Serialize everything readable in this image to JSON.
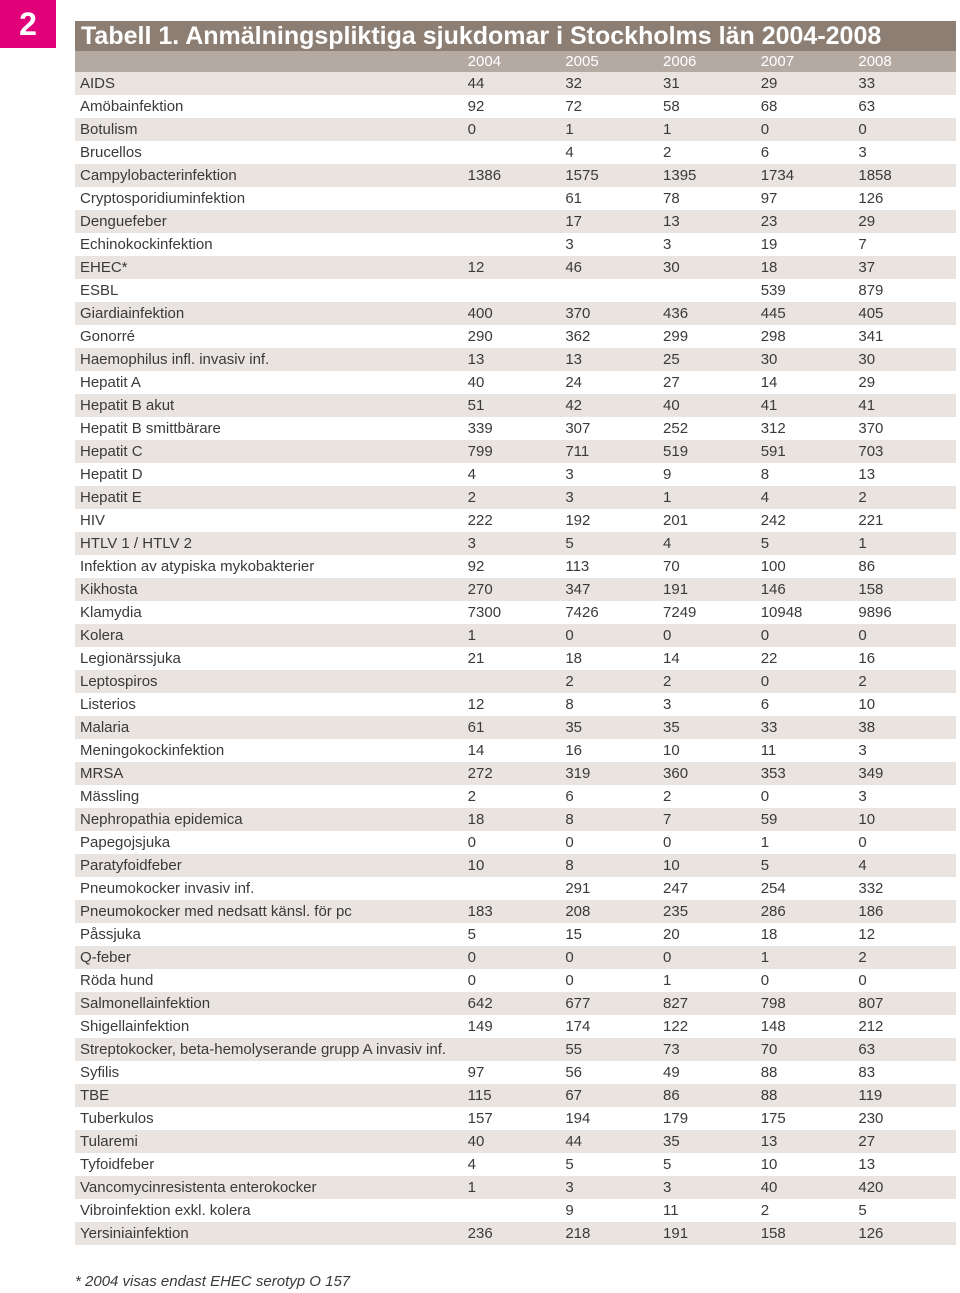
{
  "page_number": "2",
  "title": "Tabell 1. Anmälningspliktiga sjukdomar i Stockholms län 2004-2008",
  "years": [
    "2004",
    "2005",
    "2006",
    "2007",
    "2008"
  ],
  "rows": [
    {
      "name": "AIDS",
      "values": [
        "44",
        "32",
        "31",
        "29",
        "33"
      ]
    },
    {
      "name": "Amöbainfektion",
      "values": [
        "92",
        "72",
        "58",
        "68",
        "63"
      ]
    },
    {
      "name": "Botulism",
      "values": [
        "0",
        "1",
        "1",
        "0",
        "0"
      ]
    },
    {
      "name": "Brucellos",
      "values": [
        "",
        "4",
        "2",
        "6",
        "3"
      ]
    },
    {
      "name": "Campylobacterinfektion",
      "values": [
        "1386",
        "1575",
        "1395",
        "1734",
        "1858"
      ]
    },
    {
      "name": "Cryptosporidiuminfektion",
      "values": [
        "",
        "61",
        "78",
        "97",
        "126"
      ]
    },
    {
      "name": "Denguefeber",
      "values": [
        "",
        "17",
        "13",
        "23",
        "29"
      ]
    },
    {
      "name": "Echinokockinfektion",
      "values": [
        "",
        "3",
        "3",
        "19",
        "7"
      ]
    },
    {
      "name": "EHEC*",
      "values": [
        "12",
        "46",
        "30",
        "18",
        "37"
      ]
    },
    {
      "name": "ESBL",
      "values": [
        "",
        "",
        "",
        "539",
        "879"
      ]
    },
    {
      "name": "Giardiainfektion",
      "values": [
        "400",
        "370",
        "436",
        "445",
        "405"
      ]
    },
    {
      "name": "Gonorré",
      "values": [
        "290",
        "362",
        "299",
        "298",
        "341"
      ]
    },
    {
      "name": "Haemophilus infl. invasiv inf.",
      "values": [
        "13",
        "13",
        "25",
        "30",
        "30"
      ]
    },
    {
      "name": "Hepatit A",
      "values": [
        "40",
        "24",
        "27",
        "14",
        "29"
      ]
    },
    {
      "name": "Hepatit B akut",
      "values": [
        "51",
        "42",
        "40",
        "41",
        "41"
      ]
    },
    {
      "name": "Hepatit B smittbärare",
      "values": [
        "339",
        "307",
        "252",
        "312",
        "370"
      ]
    },
    {
      "name": "Hepatit C",
      "values": [
        "799",
        "711",
        "519",
        "591",
        "703"
      ]
    },
    {
      "name": "Hepatit D",
      "values": [
        "4",
        "3",
        "9",
        "8",
        "13"
      ]
    },
    {
      "name": "Hepatit E",
      "values": [
        "2",
        "3",
        "1",
        "4",
        "2"
      ]
    },
    {
      "name": "HIV",
      "values": [
        "222",
        "192",
        "201",
        "242",
        "221"
      ]
    },
    {
      "name": "HTLV 1 / HTLV 2",
      "values": [
        "3",
        "5",
        "4",
        "5",
        "1"
      ]
    },
    {
      "name": "Infektion av atypiska mykobakterier",
      "values": [
        "92",
        "113",
        "70",
        "100",
        "86"
      ]
    },
    {
      "name": "Kikhosta",
      "values": [
        "270",
        "347",
        "191",
        "146",
        "158"
      ]
    },
    {
      "name": "Klamydia",
      "values": [
        "7300",
        "7426",
        "7249",
        "10948",
        "9896"
      ]
    },
    {
      "name": "Kolera",
      "values": [
        "1",
        "0",
        "0",
        "0",
        "0"
      ]
    },
    {
      "name": "Legionärssjuka",
      "values": [
        "21",
        "18",
        "14",
        "22",
        "16"
      ]
    },
    {
      "name": "Leptospiros",
      "values": [
        "",
        "2",
        "2",
        "0",
        "2"
      ]
    },
    {
      "name": "Listerios",
      "values": [
        "12",
        "8",
        "3",
        "6",
        "10"
      ]
    },
    {
      "name": "Malaria",
      "values": [
        "61",
        "35",
        "35",
        "33",
        "38"
      ]
    },
    {
      "name": "Meningokockinfektion",
      "values": [
        "14",
        "16",
        "10",
        "11",
        "3"
      ]
    },
    {
      "name": "MRSA",
      "values": [
        "272",
        "319",
        "360",
        "353",
        "349"
      ]
    },
    {
      "name": "Mässling",
      "values": [
        "2",
        "6",
        "2",
        "0",
        "3"
      ]
    },
    {
      "name": "Nephropathia epidemica",
      "values": [
        "18",
        "8",
        "7",
        "59",
        "10"
      ]
    },
    {
      "name": "Papegojsjuka",
      "values": [
        "0",
        "0",
        "0",
        "1",
        "0"
      ]
    },
    {
      "name": "Paratyfoidfeber",
      "values": [
        "10",
        "8",
        "10",
        "5",
        "4"
      ]
    },
    {
      "name": "Pneumokocker invasiv inf.",
      "values": [
        "",
        "291",
        "247",
        "254",
        "332"
      ]
    },
    {
      "name": "Pneumokocker med nedsatt känsl. för pc",
      "values": [
        "183",
        "208",
        "235",
        "286",
        "186"
      ]
    },
    {
      "name": "Påssjuka",
      "values": [
        "5",
        "15",
        "20",
        "18",
        "12"
      ]
    },
    {
      "name": "Q-feber",
      "values": [
        "0",
        "0",
        "0",
        "1",
        "2"
      ]
    },
    {
      "name": "Röda hund",
      "values": [
        "0",
        "0",
        "1",
        "0",
        "0"
      ]
    },
    {
      "name": "Salmonellainfektion",
      "values": [
        "642",
        "677",
        "827",
        "798",
        "807"
      ]
    },
    {
      "name": "Shigellainfektion",
      "values": [
        "149",
        "174",
        "122",
        "148",
        "212"
      ]
    },
    {
      "name": "Streptokocker, beta-hemolyserande grupp A invasiv inf.",
      "values": [
        "",
        "55",
        "73",
        "70",
        "63"
      ]
    },
    {
      "name": "Syfilis",
      "values": [
        "97",
        "56",
        "49",
        "88",
        "83"
      ]
    },
    {
      "name": "TBE",
      "values": [
        "115",
        "67",
        "86",
        "88",
        "119"
      ]
    },
    {
      "name": "Tuberkulos",
      "values": [
        "157",
        "194",
        "179",
        "175",
        "230"
      ]
    },
    {
      "name": "Tularemi",
      "values": [
        "40",
        "44",
        "35",
        "13",
        "27"
      ]
    },
    {
      "name": "Tyfoidfeber",
      "values": [
        "4",
        "5",
        "5",
        "10",
        "13"
      ]
    },
    {
      "name": "Vancomycinresistenta enterokocker",
      "values": [
        "1",
        "3",
        "3",
        "40",
        "420"
      ]
    },
    {
      "name": "Vibroinfektion exkl. kolera",
      "values": [
        "",
        "9",
        "11",
        "2",
        "5"
      ]
    },
    {
      "name": "Yersiniainfektion",
      "values": [
        "236",
        "218",
        "191",
        "158",
        "126"
      ]
    }
  ],
  "footnote": "* 2004 visas endast EHEC serotyp O 157",
  "colors": {
    "badge": "#e2007a",
    "title_bar": "#8c7e73",
    "header_row": "#b5aaa2",
    "shaded_row": "#e9e4e0"
  }
}
